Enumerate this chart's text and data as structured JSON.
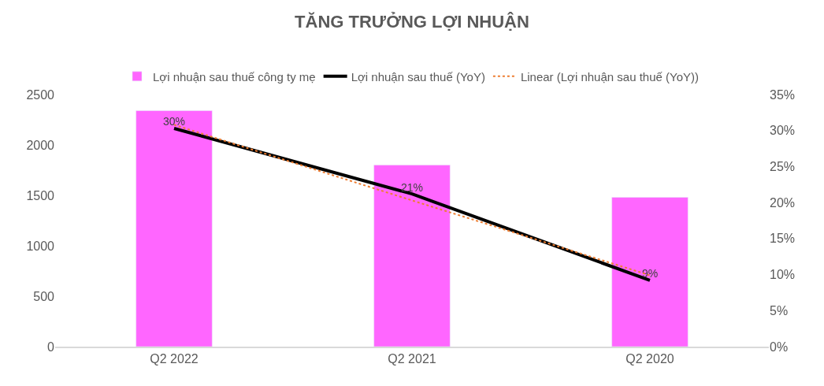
{
  "chart_data": {
    "type": "bar",
    "title": "TĂNG TRƯỞNG LỢI NHUẬN",
    "categories": [
      "Q2 2022",
      "Q2 2021",
      "Q2 2020"
    ],
    "series": [
      {
        "name": "Lợi nhuận sau thuế công ty mẹ",
        "color": "#ff66ff",
        "values": [
          2340,
          1800,
          1480
        ]
      },
      {
        "name": "Lợi nhuận sau thuế (YoY)",
        "type": "line",
        "axis": "y2",
        "color": "#000000",
        "values": [
          30.3,
          21.2,
          9.2
        ],
        "value_labels": [
          "30%",
          "21%",
          "9%"
        ]
      },
      {
        "name": "Linear (Lợi nhuận sau thuế (YoY))",
        "type": "line",
        "axis": "y2",
        "color": "#ed7d31",
        "line_style": "dotted",
        "values": [
          30.8,
          20.3,
          9.9
        ]
      }
    ],
    "ylim": [
      0,
      2500
    ],
    "yticks": [
      0,
      500,
      1000,
      1500,
      2000,
      2500
    ],
    "y2lim": [
      0,
      35
    ],
    "y2ticks": [
      {
        "value": 0,
        "label": "0%"
      },
      {
        "value": 5,
        "label": "5%"
      },
      {
        "value": 10,
        "label": "10%"
      },
      {
        "value": 15,
        "label": "15%"
      },
      {
        "value": 20,
        "label": "20%"
      },
      {
        "value": 25,
        "label": "25%"
      },
      {
        "value": 30,
        "label": "30%"
      },
      {
        "value": 35,
        "label": "35%"
      }
    ],
    "grid": false,
    "legend": "top",
    "marker": "none"
  }
}
